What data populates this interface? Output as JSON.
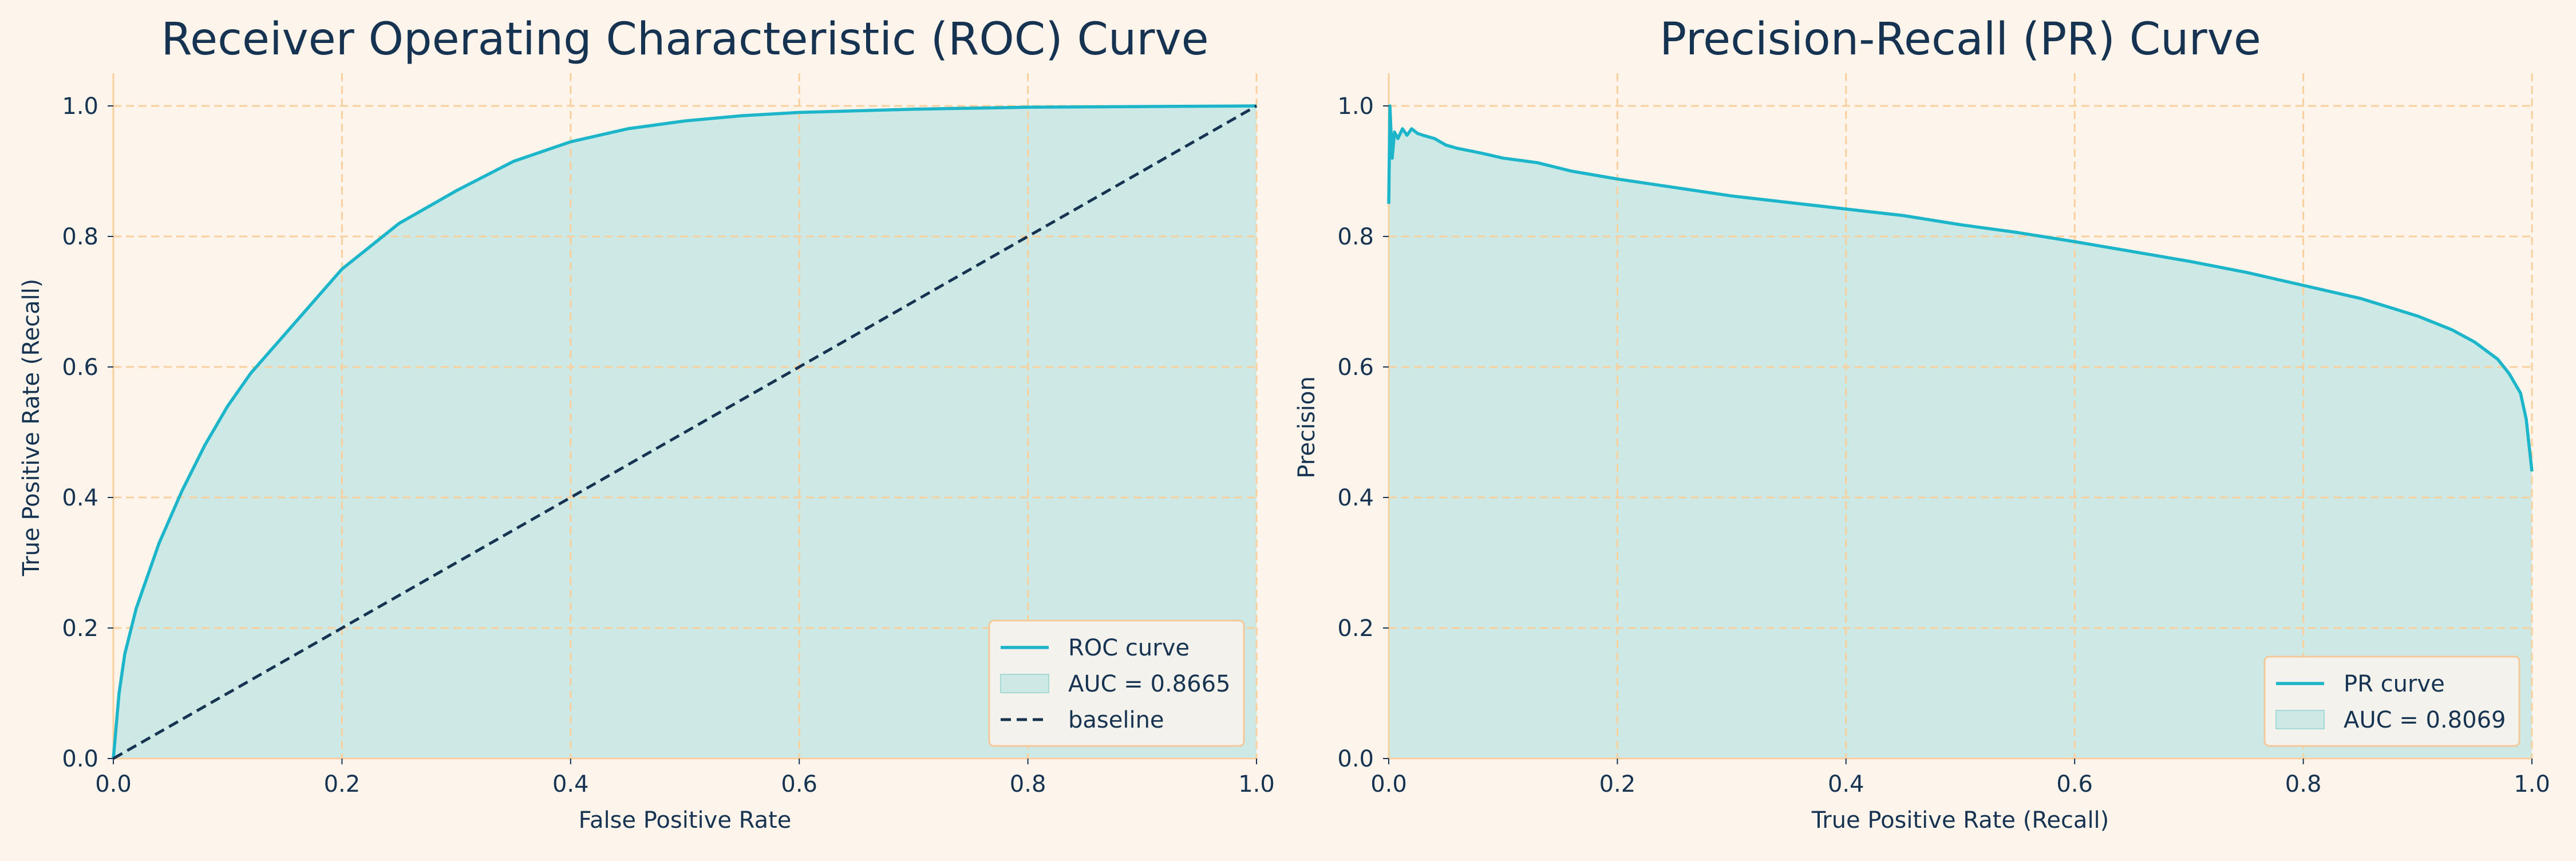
{
  "colors": {
    "background": "#fdf5ec",
    "plot_background": "#fdf5ec",
    "curve": "#1cb5c9",
    "fill": "#cde9e6",
    "baseline": "#173352",
    "grid": "#f8cf9d",
    "text": "#173352",
    "legend_bg": "#f4f2ec",
    "legend_border": "#f3c89a"
  },
  "chart_data": [
    {
      "type": "area",
      "title": "Receiver Operating Characteristic (ROC) Curve",
      "xlabel": "False Positive Rate",
      "ylabel": "True Positive Rate (Recall)",
      "xlim": [
        0,
        1
      ],
      "ylim": [
        0,
        1
      ],
      "xticks": [
        "0.0",
        "0.2",
        "0.4",
        "0.6",
        "0.8",
        "1.0"
      ],
      "yticks": [
        "0.0",
        "0.2",
        "0.4",
        "0.6",
        "0.8",
        "1.0"
      ],
      "grid": true,
      "legend_position": "bottom-right",
      "legend": [
        "ROC curve",
        "AUC = 0.8665",
        "baseline"
      ],
      "series": [
        {
          "name": "ROC curve",
          "x": [
            0,
            0.005,
            0.01,
            0.02,
            0.03,
            0.04,
            0.05,
            0.06,
            0.08,
            0.1,
            0.12,
            0.15,
            0.17,
            0.2,
            0.25,
            0.3,
            0.35,
            0.4,
            0.45,
            0.5,
            0.55,
            0.6,
            0.7,
            0.8,
            0.9,
            1.0
          ],
          "y": [
            0,
            0.1,
            0.16,
            0.23,
            0.28,
            0.33,
            0.37,
            0.41,
            0.48,
            0.54,
            0.59,
            0.65,
            0.69,
            0.75,
            0.82,
            0.87,
            0.915,
            0.945,
            0.965,
            0.977,
            0.985,
            0.99,
            0.995,
            0.998,
            0.999,
            1.0
          ]
        },
        {
          "name": "baseline",
          "x": [
            0,
            1
          ],
          "y": [
            0,
            1
          ]
        }
      ]
    },
    {
      "type": "area",
      "title": "Precision-Recall (PR) Curve",
      "xlabel": "True Positive Rate (Recall)",
      "ylabel": "Precision",
      "xlim": [
        0,
        1
      ],
      "ylim": [
        0,
        1
      ],
      "xticks": [
        "0.0",
        "0.2",
        "0.4",
        "0.6",
        "0.8",
        "1.0"
      ],
      "yticks": [
        "0.0",
        "0.2",
        "0.4",
        "0.6",
        "0.8",
        "1.0"
      ],
      "grid": true,
      "legend_position": "bottom-right",
      "legend": [
        "PR curve",
        "AUC = 0.8069"
      ],
      "series": [
        {
          "name": "PR curve",
          "x": [
            0,
            0.001,
            0.003,
            0.005,
            0.008,
            0.012,
            0.016,
            0.02,
            0.025,
            0.03,
            0.04,
            0.05,
            0.06,
            0.08,
            0.1,
            0.13,
            0.16,
            0.2,
            0.25,
            0.3,
            0.35,
            0.4,
            0.45,
            0.5,
            0.55,
            0.6,
            0.65,
            0.7,
            0.75,
            0.8,
            0.85,
            0.9,
            0.93,
            0.95,
            0.97,
            0.98,
            0.99,
            0.995,
            1.0
          ],
          "y": [
            0.85,
            1.0,
            0.92,
            0.96,
            0.95,
            0.965,
            0.955,
            0.965,
            0.958,
            0.955,
            0.95,
            0.94,
            0.935,
            0.928,
            0.92,
            0.913,
            0.9,
            0.888,
            0.875,
            0.862,
            0.852,
            0.842,
            0.832,
            0.818,
            0.806,
            0.792,
            0.777,
            0.762,
            0.745,
            0.725,
            0.705,
            0.678,
            0.657,
            0.638,
            0.612,
            0.59,
            0.56,
            0.52,
            0.44
          ]
        }
      ]
    }
  ]
}
